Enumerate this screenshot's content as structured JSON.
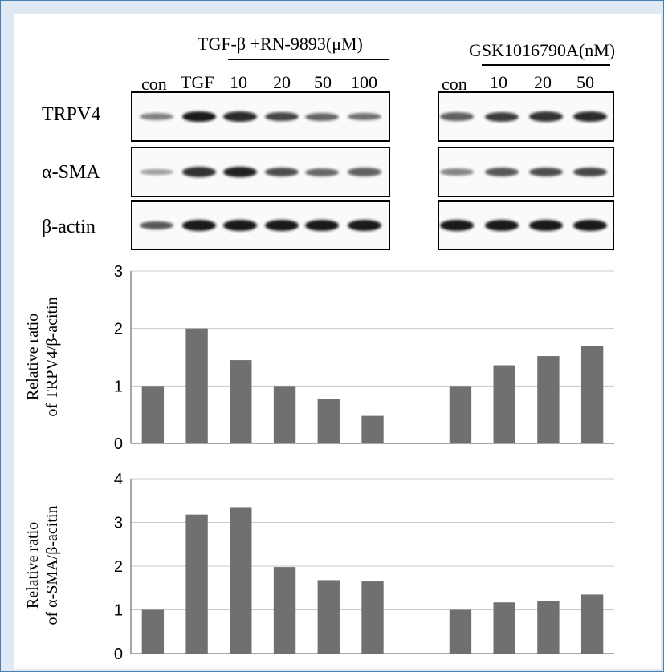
{
  "blot": {
    "group1_header": "TGF-β +RN-9893(μM)",
    "group2_header": "GSK1016790A(nM)",
    "group1_lanes": [
      "con",
      "TGF",
      "10",
      "20",
      "50",
      "100"
    ],
    "group2_lanes": [
      "con",
      "10",
      "20",
      "50"
    ],
    "proteins": [
      "TRPV4",
      "α-SMA",
      "β-actin"
    ],
    "band_intensity": {
      "group1": [
        [
          0.35,
          0.95,
          0.85,
          0.7,
          0.5,
          0.45
        ],
        [
          0.2,
          0.8,
          0.9,
          0.65,
          0.5,
          0.55
        ],
        [
          0.6,
          0.95,
          0.95,
          0.95,
          0.95,
          0.95
        ]
      ],
      "group2": [
        [
          0.55,
          0.75,
          0.8,
          0.85
        ],
        [
          0.35,
          0.6,
          0.65,
          0.7
        ],
        [
          0.95,
          0.95,
          0.95,
          0.95
        ]
      ]
    },
    "colors": {
      "band": "#111111",
      "border": "#000000"
    }
  },
  "chart_data": [
    {
      "type": "bar",
      "categories": [
        "con",
        "TGF",
        "10",
        "20",
        "50",
        "100",
        "",
        "con",
        "10",
        "20",
        "50"
      ],
      "values": [
        1.0,
        2.0,
        1.45,
        1.0,
        0.77,
        0.48,
        null,
        1.0,
        1.36,
        1.52,
        1.7
      ],
      "ylabel_line1": "Relative  ratio",
      "ylabel_line2": "of TRPV4/β-acitin",
      "ylim": [
        0,
        3
      ],
      "yticks": [
        "0",
        "1",
        "2",
        "3"
      ],
      "grid": true,
      "bar_color": "#707070"
    },
    {
      "type": "bar",
      "categories": [
        "con",
        "TGF",
        "10",
        "20",
        "50",
        "100",
        "",
        "con",
        "10",
        "20",
        "50"
      ],
      "values": [
        1.0,
        3.18,
        3.35,
        1.98,
        1.68,
        1.65,
        null,
        1.0,
        1.17,
        1.2,
        1.35
      ],
      "ylabel_line1": "Relative  ratio",
      "ylabel_line2": "of α-SMA/β-acitin",
      "ylim": [
        0,
        4
      ],
      "yticks": [
        "0",
        "1",
        "2",
        "3",
        "4"
      ],
      "grid": true,
      "bar_color": "#707070"
    }
  ]
}
